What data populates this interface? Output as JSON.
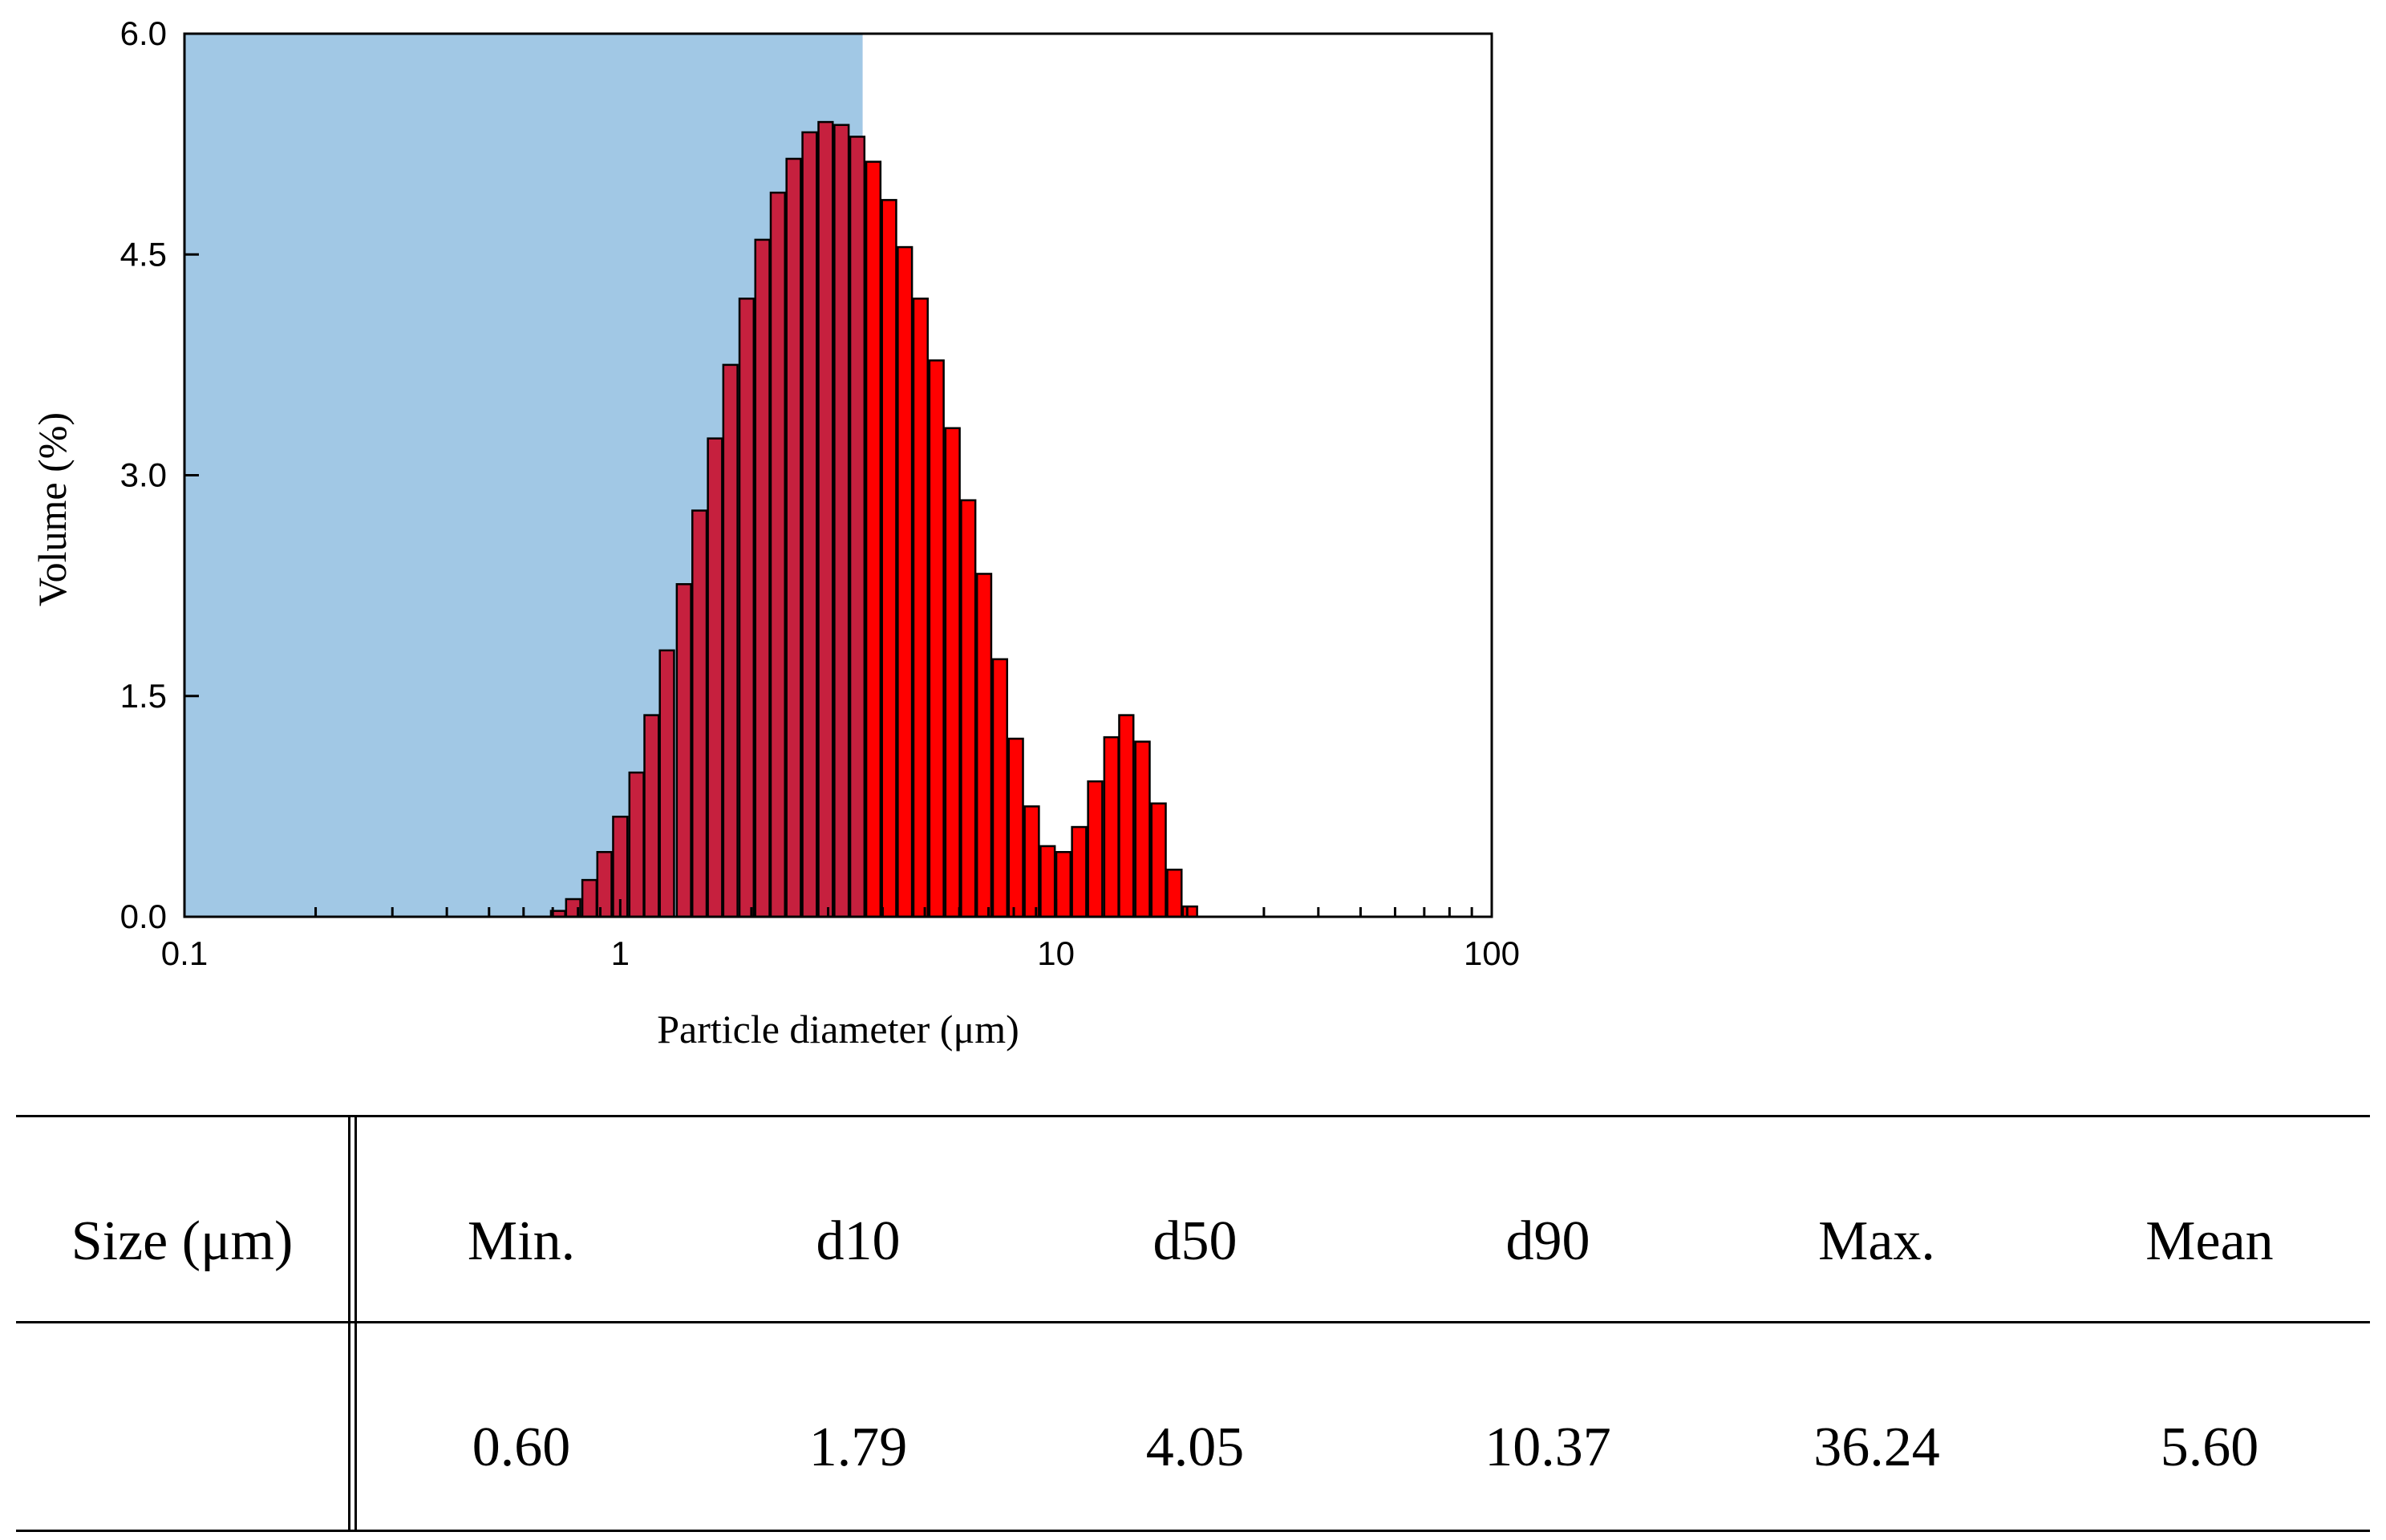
{
  "chart_data": {
    "type": "bar",
    "xlabel": "Particle diameter (μm)",
    "ylabel": "Volume (%)",
    "xscale": "log",
    "xlim": [
      0.1,
      100
    ],
    "ylim": [
      0,
      6.0
    ],
    "x_tick_labels": [
      "0.1",
      "1",
      "10",
      "100"
    ],
    "y_tick_labels": [
      "0.0",
      "1.5",
      "3.0",
      "4.5",
      "6.0"
    ],
    "shaded_region": {
      "x_from": 0.1,
      "x_to": 3.6,
      "color": "#a1c8e5"
    },
    "bar_color_in_region": "#c6203e",
    "bar_color": "#ff0000",
    "x": [
      0.72,
      0.78,
      0.85,
      0.92,
      1.0,
      1.09,
      1.18,
      1.28,
      1.4,
      1.52,
      1.65,
      1.79,
      1.95,
      2.12,
      2.3,
      2.5,
      2.72,
      2.96,
      3.22,
      3.5,
      3.81,
      4.14,
      4.5,
      4.89,
      5.32,
      5.79,
      6.29,
      6.84,
      7.44,
      8.09,
      8.8,
      9.57,
      10.4,
      11.3,
      12.3,
      13.4,
      14.5,
      15.8,
      17.2,
      18.7,
      20.3,
      22.1,
      24.0,
      26.1,
      28.4,
      30.9
    ],
    "values": [
      0.04,
      0.12,
      0.25,
      0.44,
      0.68,
      0.98,
      1.37,
      1.81,
      2.26,
      2.76,
      3.25,
      3.75,
      4.2,
      4.6,
      4.92,
      5.15,
      5.33,
      5.4,
      5.38,
      5.3,
      5.13,
      4.87,
      4.55,
      4.2,
      3.78,
      3.32,
      2.83,
      2.33,
      1.75,
      1.21,
      0.75,
      0.48,
      0.44,
      0.61,
      0.92,
      1.22,
      1.37,
      1.19,
      0.77,
      0.32,
      0.07,
      0.0,
      0.0,
      0.0,
      0.0,
      0.0
    ]
  },
  "table": {
    "row_header": "Size (μm)",
    "columns": [
      "Min.",
      "d10",
      "d50",
      "d90",
      "Max.",
      "Mean"
    ],
    "values": [
      "0.60",
      "1.79",
      "4.05",
      "10.37",
      "36.24",
      "5.60"
    ]
  }
}
